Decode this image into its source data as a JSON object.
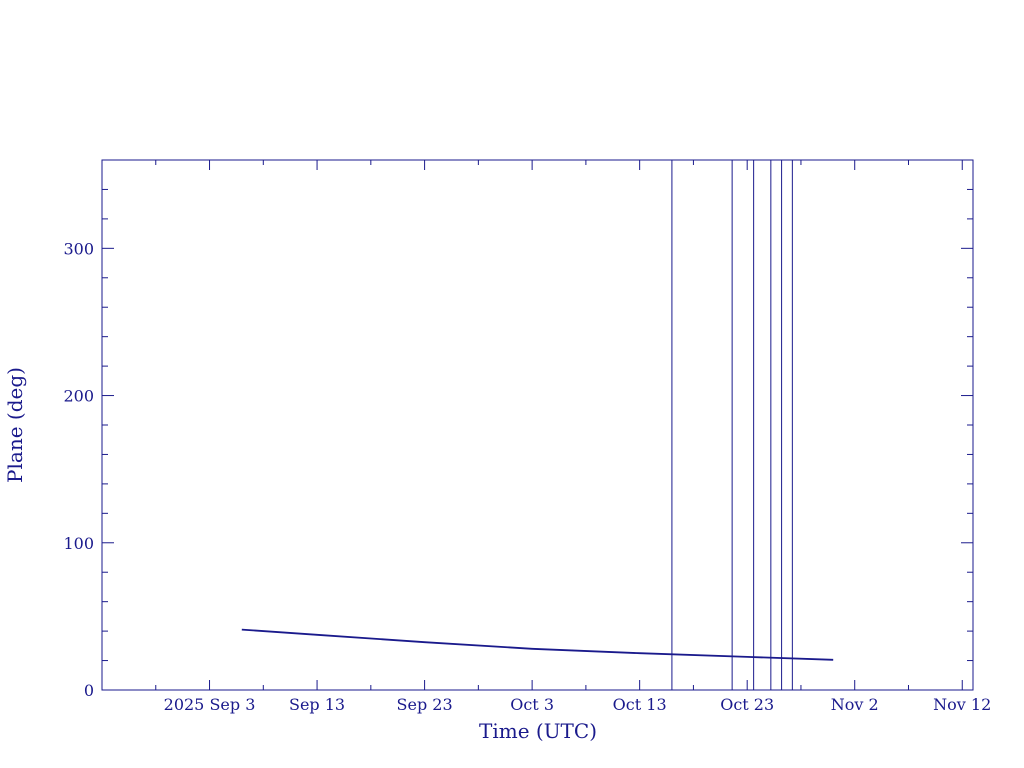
{
  "colors": {
    "axis": "#1a1a8c",
    "series": "#1a1a8c",
    "markers": "#1a1a8c",
    "background": "#ffffff"
  },
  "chart_data": {
    "type": "line",
    "title": "",
    "xlabel": "Time (UTC)",
    "ylabel": "Plane (deg)",
    "xlim": [
      "2025-08-24",
      "2025-11-13"
    ],
    "ylim": [
      0,
      360
    ],
    "x_ticks": [
      {
        "date": "2025-09-03",
        "label": "2025 Sep  3"
      },
      {
        "date": "2025-09-13",
        "label": "Sep 13"
      },
      {
        "date": "2025-09-23",
        "label": "Sep 23"
      },
      {
        "date": "2025-10-03",
        "label": "Oct  3"
      },
      {
        "date": "2025-10-13",
        "label": "Oct 13"
      },
      {
        "date": "2025-10-23",
        "label": "Oct 23"
      },
      {
        "date": "2025-11-02",
        "label": "Nov  2"
      },
      {
        "date": "2025-11-12",
        "label": "Nov 12"
      }
    ],
    "y_ticks": [
      0,
      100,
      200,
      300
    ],
    "series": [
      {
        "x": [
          "2025-09-06",
          "2025-09-13",
          "2025-09-23",
          "2025-10-03",
          "2025-10-13",
          "2025-10-23",
          "2025-10-31"
        ],
        "y": [
          41,
          37.5,
          32.5,
          28,
          25,
          22.5,
          20.5
        ]
      }
    ],
    "vertical_lines": [
      "2025-10-16",
      "2025-10-21.6",
      "2025-10-23.6",
      "2025-10-25.2",
      "2025-10-26.2",
      "2025-10-27.2"
    ]
  }
}
